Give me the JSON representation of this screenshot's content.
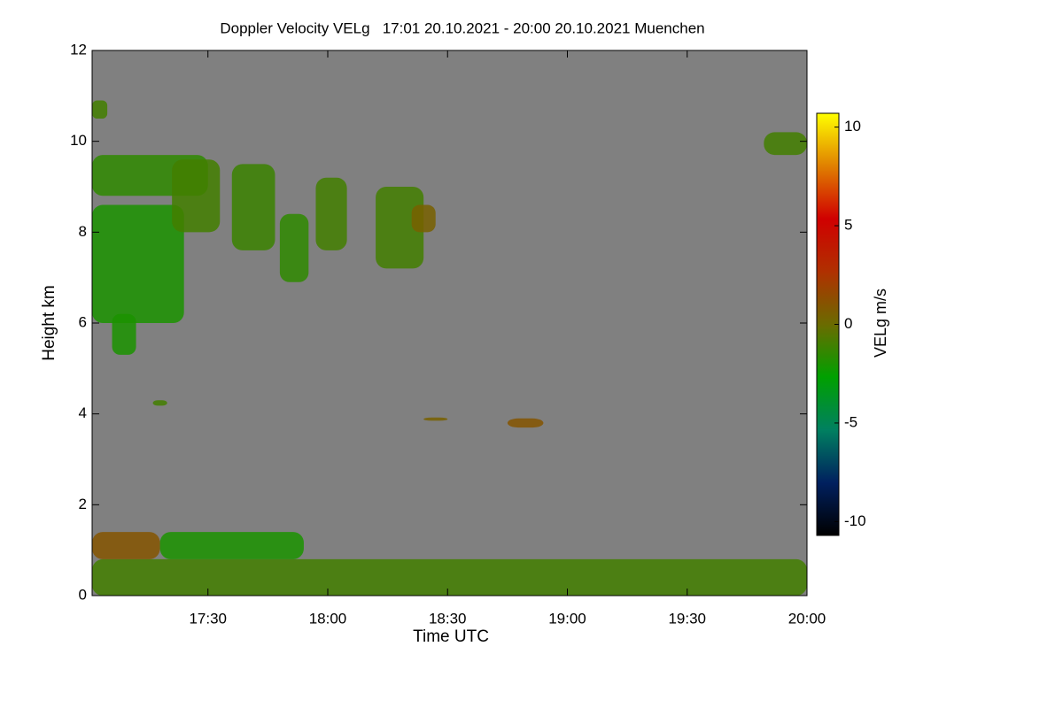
{
  "chart_data": {
    "type": "heatmap",
    "title": "Doppler Velocity VELg   17:01 20.10.2021 - 20:00 20.10.2021 Muenchen",
    "x_label": "Time UTC",
    "y_label": "Height km",
    "xlim": [
      17.0167,
      20.0
    ],
    "xticks": [
      {
        "value": 17.5,
        "label": "17:30"
      },
      {
        "value": 18.0,
        "label": "18:00"
      },
      {
        "value": 18.5,
        "label": "18:30"
      },
      {
        "value": 19.0,
        "label": "19:00"
      },
      {
        "value": 19.5,
        "label": "19:30"
      },
      {
        "value": 20.0,
        "label": "20:00"
      }
    ],
    "ylim": [
      0,
      12
    ],
    "yticks": [
      0,
      2,
      4,
      6,
      8,
      10,
      12
    ],
    "background": "#808080",
    "echoes": [
      {
        "t": [
          17.0167,
          20.0
        ],
        "h": [
          0.0,
          0.8
        ],
        "v": -1
      },
      {
        "t": [
          17.0167,
          17.3
        ],
        "h": [
          0.8,
          1.4
        ],
        "v": 1
      },
      {
        "t": [
          17.3,
          17.9
        ],
        "h": [
          0.8,
          1.4
        ],
        "v": -2
      },
      {
        "t": [
          17.0167,
          17.5
        ],
        "h": [
          8.8,
          9.7
        ],
        "v": -1.5
      },
      {
        "t": [
          17.0167,
          17.4
        ],
        "h": [
          6.0,
          8.6
        ],
        "v": -2
      },
      {
        "t": [
          17.1,
          17.2
        ],
        "h": [
          5.3,
          6.2
        ],
        "v": -2
      },
      {
        "t": [
          17.35,
          17.55
        ],
        "h": [
          8.0,
          9.6
        ],
        "v": -1
      },
      {
        "t": [
          17.6,
          17.78
        ],
        "h": [
          7.6,
          9.5
        ],
        "v": -1.2
      },
      {
        "t": [
          17.8,
          17.92
        ],
        "h": [
          6.9,
          8.4
        ],
        "v": -1.5
      },
      {
        "t": [
          17.95,
          18.08
        ],
        "h": [
          7.6,
          9.2
        ],
        "v": -1
      },
      {
        "t": [
          18.2,
          18.4
        ],
        "h": [
          7.2,
          9.0
        ],
        "v": -1
      },
      {
        "t": [
          18.35,
          18.45
        ],
        "h": [
          8.0,
          8.6
        ],
        "v": 0.5
      },
      {
        "t": [
          17.0167,
          17.08
        ],
        "h": [
          10.5,
          10.9
        ],
        "v": -1
      },
      {
        "t": [
          19.82,
          20.0
        ],
        "h": [
          9.7,
          10.2
        ],
        "v": -1
      },
      {
        "t": [
          17.27,
          17.33
        ],
        "h": [
          4.18,
          4.3
        ],
        "v": -1
      },
      {
        "t": [
          18.75,
          18.9
        ],
        "h": [
          3.7,
          3.9
        ],
        "v": 1
      },
      {
        "t": [
          18.4,
          18.5
        ],
        "h": [
          3.85,
          3.92
        ],
        "v": 0.5
      }
    ],
    "colorbar": {
      "label": "VELg m/s",
      "lim": [
        -10.7,
        10.7
      ],
      "ticks": [
        10,
        5,
        0,
        -5,
        -10
      ],
      "colors": [
        "#000000",
        "#00205f",
        "#008060",
        "#00a000",
        "#6b6b00",
        "#b03000",
        "#d00000",
        "#e08000",
        "#ffff00"
      ]
    }
  }
}
